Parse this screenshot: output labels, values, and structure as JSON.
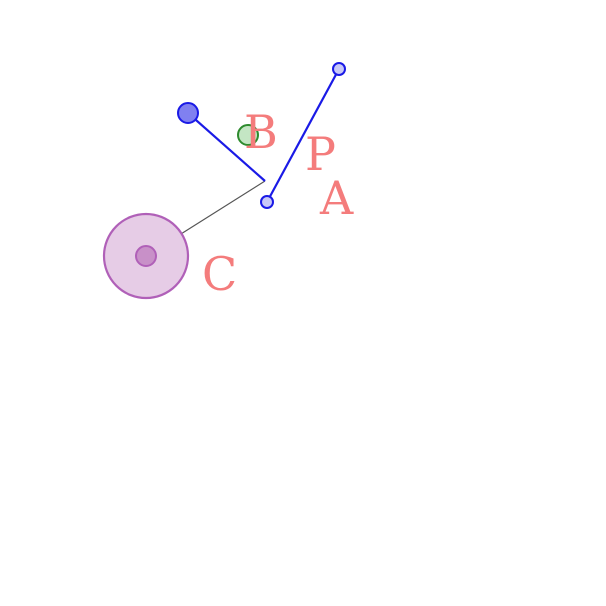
{
  "labels": {
    "a": "A",
    "b": "B",
    "c": "C",
    "p": "P"
  },
  "colors": {
    "label": "#f47c7c",
    "blue": "#1a1ae6",
    "blue_fill": "#8080f0",
    "green": "#2e8b2e",
    "green_fill": "#c4e6c4",
    "purple": "#b060b8",
    "purple_fill": "#e6cce6",
    "purple_core": "#c890c8",
    "connector": "#555555"
  }
}
